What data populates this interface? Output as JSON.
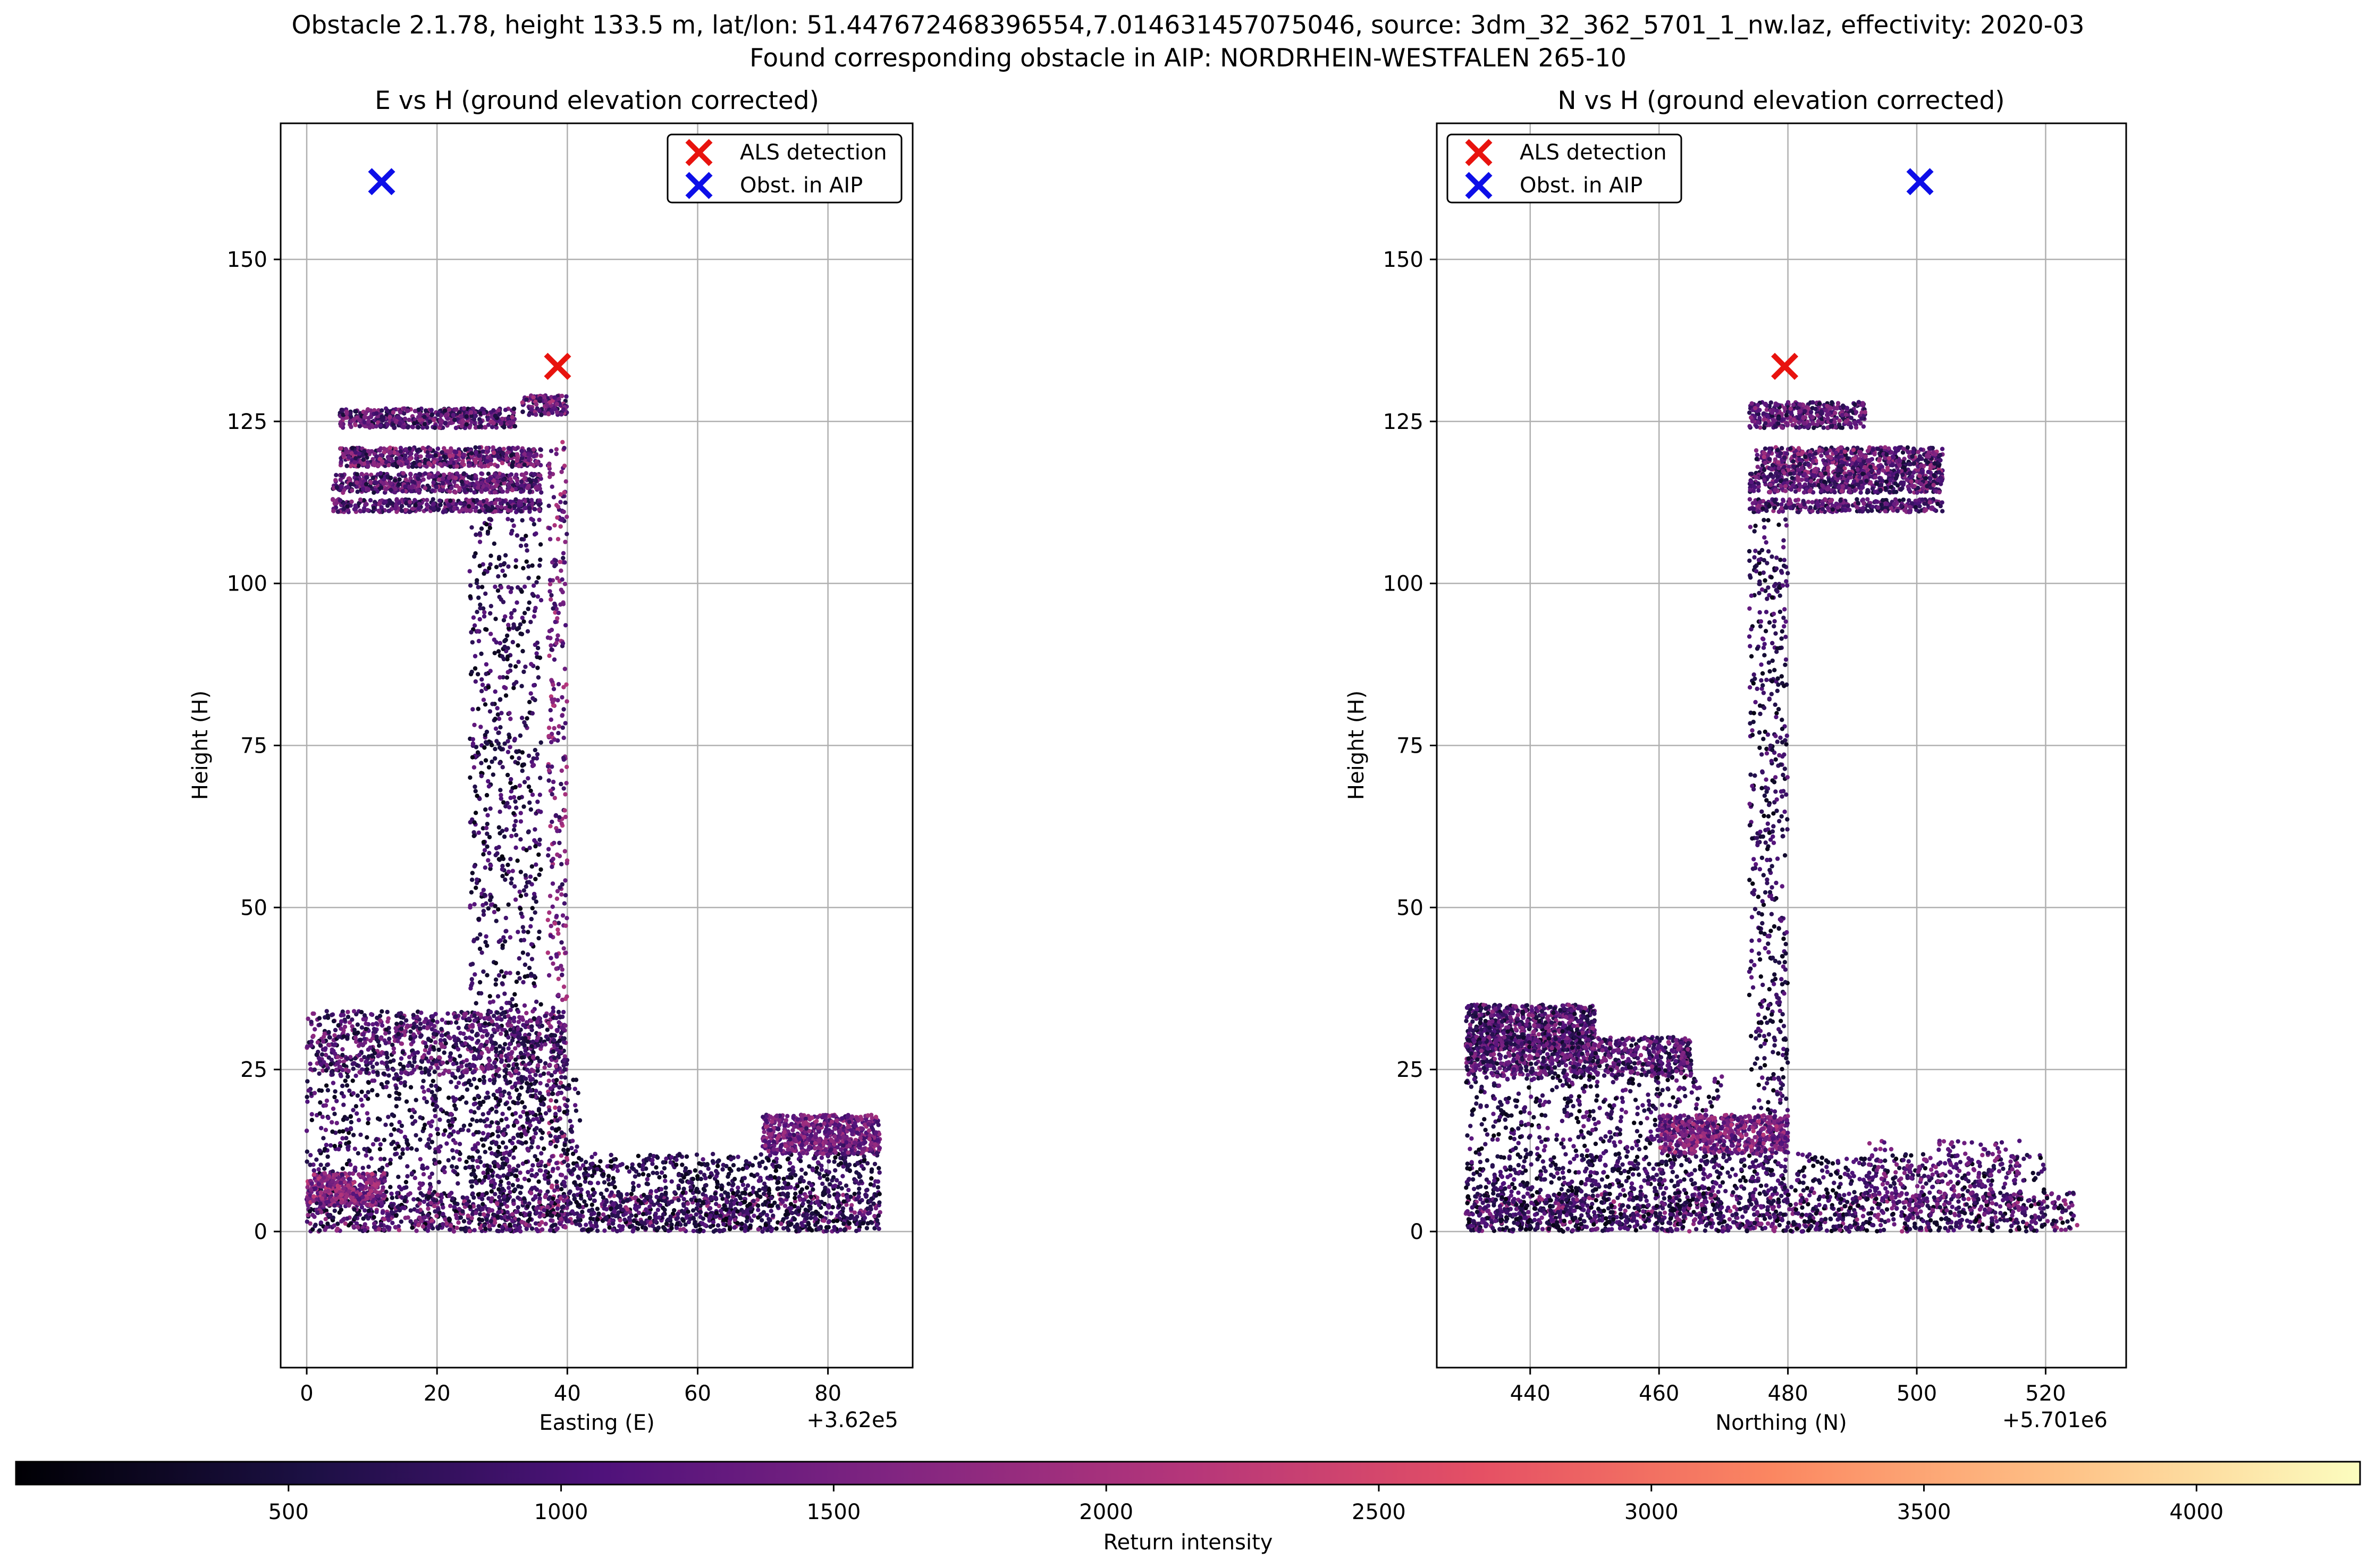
{
  "figure": {
    "title_line1": "Obstacle 2.1.78, height 133.5 m, lat/lon: 51.447672468396554,7.014631457075046, source: 3dm_32_362_5701_1_nw.laz, effectivity: 2020-03",
    "title_line2": "Found corresponding obstacle in AIP: NORDRHEIN-WESTFALEN 265-10"
  },
  "colorbar": {
    "label": "Return intensity",
    "colormap": "magma",
    "range": [
      0,
      4300
    ],
    "ticks": [
      500,
      1000,
      1500,
      2000,
      2500,
      3000,
      3500,
      4000
    ]
  },
  "colors": {
    "als": "#e8130e",
    "aip": "#0d0ee8",
    "grid": "#b0b0b0",
    "magma_stops": [
      "#000004",
      "#1c1044",
      "#4f127b",
      "#812581",
      "#b5367a",
      "#e55064",
      "#fb8761",
      "#fec287",
      "#fcfdbf"
    ]
  },
  "chart_data": [
    {
      "type": "scatter",
      "title": "E vs H (ground elevation corrected)",
      "xlabel": "Easting (E)",
      "ylabel": "Height (H)",
      "x_offset_label": "+3.62e5",
      "xlim": [
        -4,
        93
      ],
      "ylim": [
        -21,
        171
      ],
      "xticks": [
        0,
        20,
        40,
        60,
        80
      ],
      "yticks": [
        0,
        25,
        50,
        75,
        100,
        125,
        150
      ],
      "grid": true,
      "legend": {
        "placement": "top-right",
        "entries": [
          "ALS detection",
          "Obst. in AIP"
        ]
      },
      "als_detection": {
        "x": 38.5,
        "y": 133.5
      },
      "aip_obstacle": {
        "x": 11.5,
        "y": 162
      },
      "point_cloud_clusters": [
        {
          "x": [
            5,
            32
          ],
          "y": [
            124,
            127
          ],
          "intensity": [
            400,
            1900
          ]
        },
        {
          "x": [
            5,
            36
          ],
          "y": [
            118,
            121
          ],
          "intensity": [
            400,
            2100
          ]
        },
        {
          "x": [
            4,
            36
          ],
          "y": [
            114,
            117
          ],
          "intensity": [
            400,
            1900
          ]
        },
        {
          "x": [
            4,
            36
          ],
          "y": [
            111,
            113
          ],
          "intensity": [
            400,
            1800
          ]
        },
        {
          "x": [
            33,
            40
          ],
          "y": [
            126,
            129
          ],
          "intensity": [
            500,
            2200
          ]
        },
        {
          "x": [
            25,
            36
          ],
          "y": [
            0,
            110
          ],
          "intensity": [
            100,
            1300
          ],
          "sparse": true
        },
        {
          "x": [
            37,
            40
          ],
          "y": [
            0,
            122
          ],
          "intensity": [
            600,
            2200
          ],
          "sparse": true
        },
        {
          "x": [
            0,
            40
          ],
          "y": [
            24,
            34
          ],
          "intensity": [
            300,
            1800
          ]
        },
        {
          "x": [
            0,
            42
          ],
          "y": [
            0,
            24
          ],
          "intensity": [
            100,
            1400
          ],
          "sparse": true
        },
        {
          "x": [
            0,
            88
          ],
          "y": [
            0,
            6
          ],
          "intensity": [
            100,
            2000
          ]
        },
        {
          "x": [
            40,
            88
          ],
          "y": [
            0,
            12
          ],
          "intensity": [
            100,
            1200
          ]
        },
        {
          "x": [
            70,
            88
          ],
          "y": [
            12,
            18
          ],
          "intensity": [
            800,
            2000
          ]
        },
        {
          "x": [
            0,
            12
          ],
          "y": [
            4,
            9
          ],
          "intensity": [
            900,
            2300
          ]
        }
      ]
    },
    {
      "type": "scatter",
      "title": "N vs H (ground elevation corrected)",
      "xlabel": "Northing (N)",
      "ylabel": "Height (H)",
      "x_offset_label": "+5.701e6",
      "xlim": [
        425.5,
        532.5
      ],
      "ylim": [
        -21,
        171
      ],
      "xticks": [
        440,
        460,
        480,
        500,
        520
      ],
      "yticks": [
        0,
        25,
        50,
        75,
        100,
        125,
        150
      ],
      "grid": true,
      "legend": {
        "placement": "top-left",
        "entries": [
          "ALS detection",
          "Obst. in AIP"
        ]
      },
      "als_detection": {
        "x": 479.5,
        "y": 133.5
      },
      "aip_obstacle": {
        "x": 500.5,
        "y": 162
      },
      "point_cloud_clusters": [
        {
          "x": [
            474,
            492
          ],
          "y": [
            124,
            128
          ],
          "intensity": [
            400,
            1900
          ]
        },
        {
          "x": [
            475,
            504
          ],
          "y": [
            117,
            121
          ],
          "intensity": [
            400,
            2100
          ]
        },
        {
          "x": [
            474,
            504
          ],
          "y": [
            114,
            117
          ],
          "intensity": [
            400,
            1900
          ]
        },
        {
          "x": [
            474,
            504
          ],
          "y": [
            111,
            113
          ],
          "intensity": [
            400,
            1800
          ]
        },
        {
          "x": [
            474,
            480
          ],
          "y": [
            0,
            110
          ],
          "intensity": [
            100,
            1300
          ],
          "sparse": true
        },
        {
          "x": [
            430,
            450
          ],
          "y": [
            28,
            35
          ],
          "intensity": [
            300,
            1800
          ]
        },
        {
          "x": [
            430,
            465
          ],
          "y": [
            24,
            30
          ],
          "intensity": [
            300,
            1800
          ]
        },
        {
          "x": [
            430,
            470
          ],
          "y": [
            0,
            24
          ],
          "intensity": [
            100,
            1400
          ],
          "sparse": true
        },
        {
          "x": [
            430,
            525
          ],
          "y": [
            0,
            6
          ],
          "intensity": [
            100,
            2000
          ]
        },
        {
          "x": [
            430,
            520
          ],
          "y": [
            0,
            12
          ],
          "intensity": [
            100,
            1200
          ]
        },
        {
          "x": [
            460,
            480
          ],
          "y": [
            12,
            18
          ],
          "intensity": [
            800,
            2200
          ]
        },
        {
          "x": [
            492,
            516
          ],
          "y": [
            3,
            14
          ],
          "intensity": [
            800,
            1800
          ],
          "sparse": true
        }
      ]
    }
  ]
}
